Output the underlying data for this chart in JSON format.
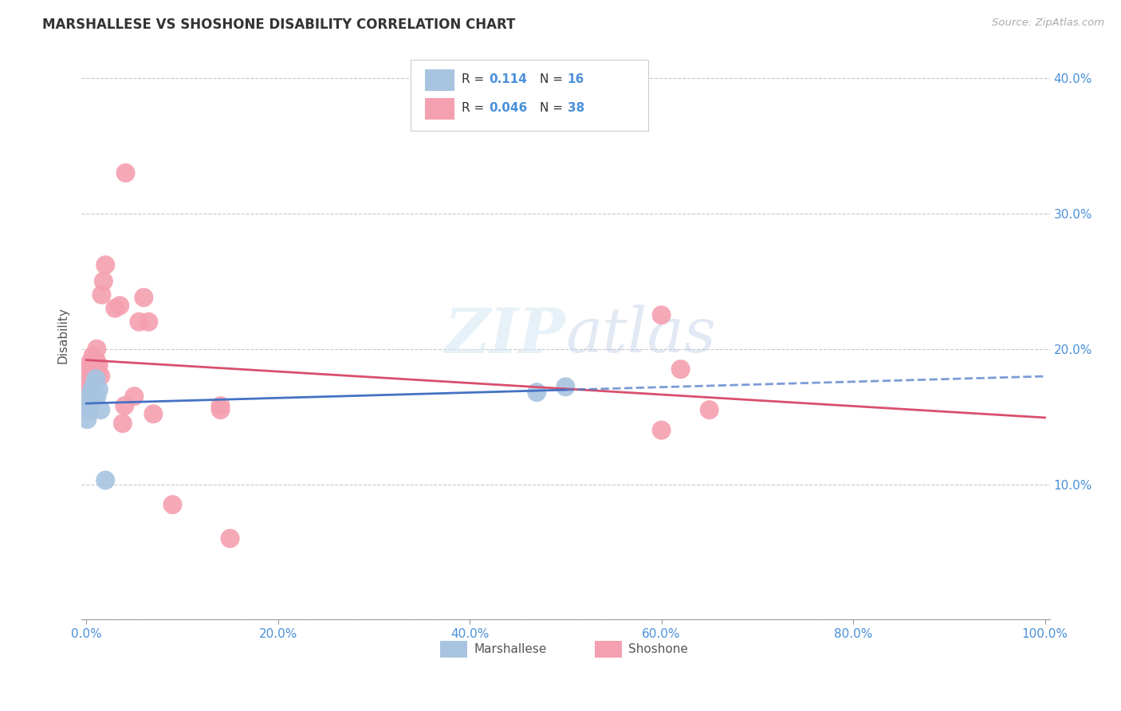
{
  "title": "MARSHALLESE VS SHOSHONE DISABILITY CORRELATION CHART",
  "source": "Source: ZipAtlas.com",
  "ylabel": "Disability",
  "watermark": "ZIPatlas",
  "xlim": [
    -0.005,
    1.005
  ],
  "ylim": [
    0.0,
    0.42
  ],
  "xticks": [
    0.0,
    0.2,
    0.4,
    0.6,
    0.8,
    1.0
  ],
  "yticks": [
    0.0,
    0.1,
    0.2,
    0.3,
    0.4
  ],
  "xtick_labels": [
    "0.0%",
    "20.0%",
    "40.0%",
    "60.0%",
    "80.0%",
    "100.0%"
  ],
  "ytick_labels_right": [
    "",
    "10.0%",
    "20.0%",
    "30.0%",
    "40.0%"
  ],
  "marshallese_color": "#a8c4e0",
  "shoshone_color": "#f4a0b0",
  "marshallese_line_color": "#4472c4",
  "shoshone_line_color": "#d94f6e",
  "marshallese_x": [
    0.001,
    0.002,
    0.003,
    0.004,
    0.005,
    0.006,
    0.007,
    0.008,
    0.009,
    0.01,
    0.011,
    0.013,
    0.015,
    0.02,
    0.47,
    0.5
  ],
  "marshallese_y": [
    0.148,
    0.155,
    0.158,
    0.163,
    0.167,
    0.17,
    0.168,
    0.163,
    0.175,
    0.178,
    0.165,
    0.17,
    0.155,
    0.103,
    0.168,
    0.172
  ],
  "shoshone_x": [
    0.001,
    0.002,
    0.003,
    0.004,
    0.005,
    0.006,
    0.006,
    0.007,
    0.007,
    0.008,
    0.009,
    0.009,
    0.01,
    0.011,
    0.012,
    0.013,
    0.015,
    0.016,
    0.018,
    0.02,
    0.03,
    0.035,
    0.05,
    0.055,
    0.06,
    0.065,
    0.07,
    0.09,
    0.14,
    0.15,
    0.6,
    0.62,
    0.65,
    0.04,
    0.038,
    0.041,
    0.14,
    0.6
  ],
  "shoshone_y": [
    0.172,
    0.178,
    0.185,
    0.19,
    0.175,
    0.168,
    0.183,
    0.185,
    0.195,
    0.192,
    0.185,
    0.178,
    0.192,
    0.2,
    0.183,
    0.188,
    0.18,
    0.24,
    0.25,
    0.262,
    0.23,
    0.232,
    0.165,
    0.22,
    0.238,
    0.22,
    0.152,
    0.085,
    0.158,
    0.06,
    0.14,
    0.185,
    0.155,
    0.158,
    0.145,
    0.33,
    0.155,
    0.225
  ],
  "background_color": "#ffffff",
  "grid_color": "#c8c8c8"
}
